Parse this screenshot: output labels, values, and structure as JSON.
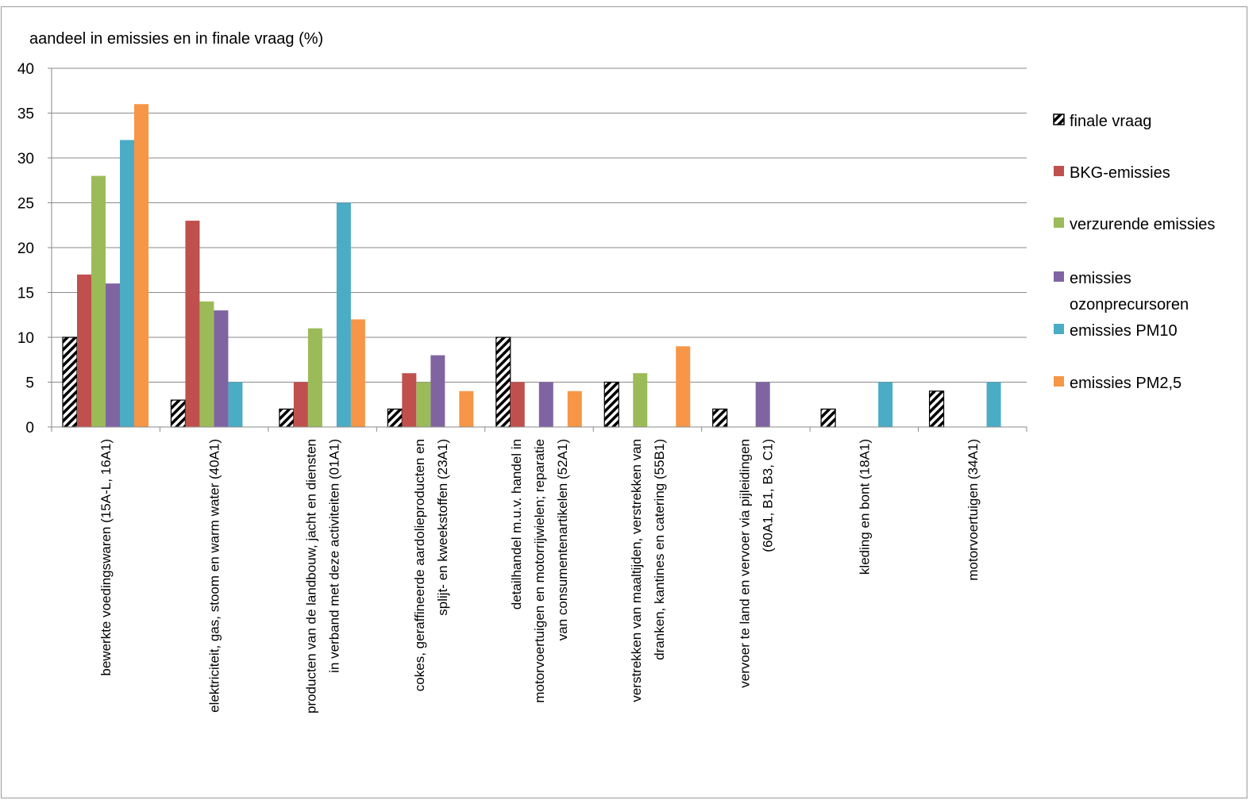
{
  "chart_data": {
    "type": "bar",
    "ylabel": "aandeel in emissies  en in finale vraag (%)",
    "ylim": [
      0,
      40
    ],
    "yticks": [
      "0",
      "5",
      "10",
      "15",
      "20",
      "25",
      "30",
      "35",
      "40"
    ],
    "grid": true,
    "legend_position": "right",
    "categories": [
      [
        "bewerkte voedingswaren (15A-L, 16A1)"
      ],
      [
        "elektriciteit, gas, stoom en warm water (40A1)"
      ],
      [
        "producten van de landbouw, jacht en diensten",
        "in verband met deze activiteiten (01A1)"
      ],
      [
        "cokes, geraffineerde aardolieproducten en",
        "splijt- en kweekstoffen (23A1)"
      ],
      [
        "detailhandel m.u.v. handel in",
        "motorvoertuigen en motorrijwielen; reparatie",
        "van consumentenartikelen (52A1)"
      ],
      [
        "verstrekken van maaltijden, verstrekken van",
        "dranken, kantines en catering (55B1)"
      ],
      [
        "vervoer te land en vervoer via pijleidingen",
        "(60A1, B1, B3, C1)"
      ],
      [
        "kleding en bont (18A1)"
      ],
      [
        "motorvoertuigen (34A1)"
      ]
    ],
    "series": [
      {
        "name": "finale vraag",
        "color": "#000000",
        "pattern": "hatched",
        "values": [
          10,
          3,
          2,
          2,
          10,
          5,
          2,
          2,
          4
        ]
      },
      {
        "name": "BKG-emissies",
        "color": "#C0504D",
        "values": [
          17,
          23,
          5,
          6,
          5,
          0,
          0,
          0,
          0
        ]
      },
      {
        "name": "verzurende emissies",
        "color": "#9BBB59",
        "values": [
          28,
          14,
          11,
          5,
          0,
          6,
          0,
          0,
          0
        ]
      },
      {
        "name": "emissies ozonprecursoren",
        "color": "#8064A2",
        "values": [
          16,
          13,
          0,
          8,
          5,
          0,
          5,
          0,
          0
        ]
      },
      {
        "name": "emissies PM10",
        "color": "#4BACC6",
        "values": [
          32,
          5,
          25,
          0,
          0,
          0,
          0,
          5,
          5
        ]
      },
      {
        "name": "emissies PM2,5",
        "color": "#F79646",
        "values": [
          36,
          0,
          12,
          4,
          4,
          9,
          0,
          0,
          0
        ]
      }
    ],
    "legend_lines": [
      [
        "finale vraag"
      ],
      [
        "BKG-emissies"
      ],
      [
        "verzurende emissies"
      ],
      [
        "emissies",
        "ozonprecursoren"
      ],
      [
        "emissies PM10"
      ],
      [
        "emissies PM2,5"
      ]
    ]
  }
}
